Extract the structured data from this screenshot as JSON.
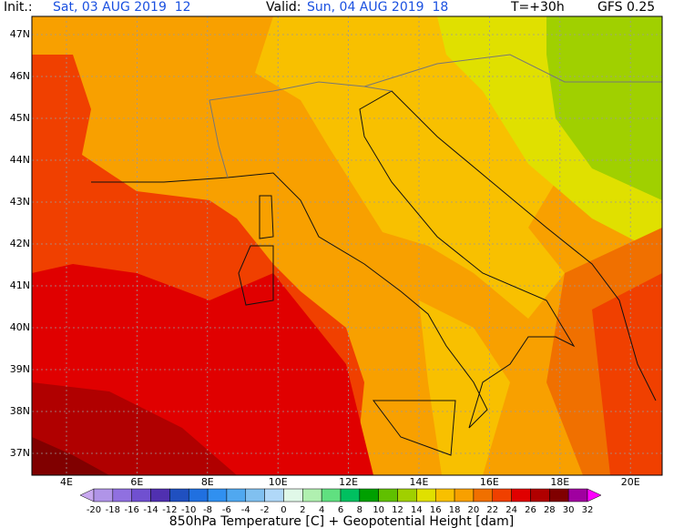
{
  "header": {
    "init_label": "Init.:",
    "init": "Sat, 03 AUG 2019  12",
    "valid_label": "Valid:",
    "valid": "Sun, 04 AUG 2019  18",
    "lead": "T=+30h",
    "model": "GFS 0.25"
  },
  "map": {
    "lat_labels": [
      "47N",
      "46N",
      "45N",
      "44N",
      "43N",
      "42N",
      "41N",
      "40N",
      "39N",
      "38N",
      "37N"
    ],
    "lon_labels": [
      "4E",
      "6E",
      "8E",
      "10E",
      "12E",
      "14E",
      "16E",
      "18E",
      "20E"
    ]
  },
  "colorbar": {
    "labels": [
      -20,
      -18,
      -16,
      -14,
      -12,
      -10,
      -8,
      -6,
      -4,
      -2,
      0,
      2,
      4,
      6,
      8,
      10,
      12,
      14,
      16,
      18,
      20,
      22,
      24,
      26,
      28,
      30,
      32
    ],
    "colors": [
      "#c8a8f0",
      "#b094e8",
      "#9070e0",
      "#7050d0",
      "#5030b0",
      "#2050c0",
      "#2070e0",
      "#3090f0",
      "#50a8f0",
      "#80c0f0",
      "#b0d8f8",
      "#e0f8e8",
      "#b0f0b0",
      "#60e080",
      "#00c060",
      "#00a000",
      "#60c000",
      "#a0d000",
      "#e0e000",
      "#f8c000",
      "#f8a000",
      "#f07000",
      "#f04000",
      "#e00000",
      "#b00000",
      "#800000",
      "#a000a0",
      "#ff00ff"
    ],
    "title": "850hPa Temperature [C] + Geopotential Height [dam]"
  }
}
